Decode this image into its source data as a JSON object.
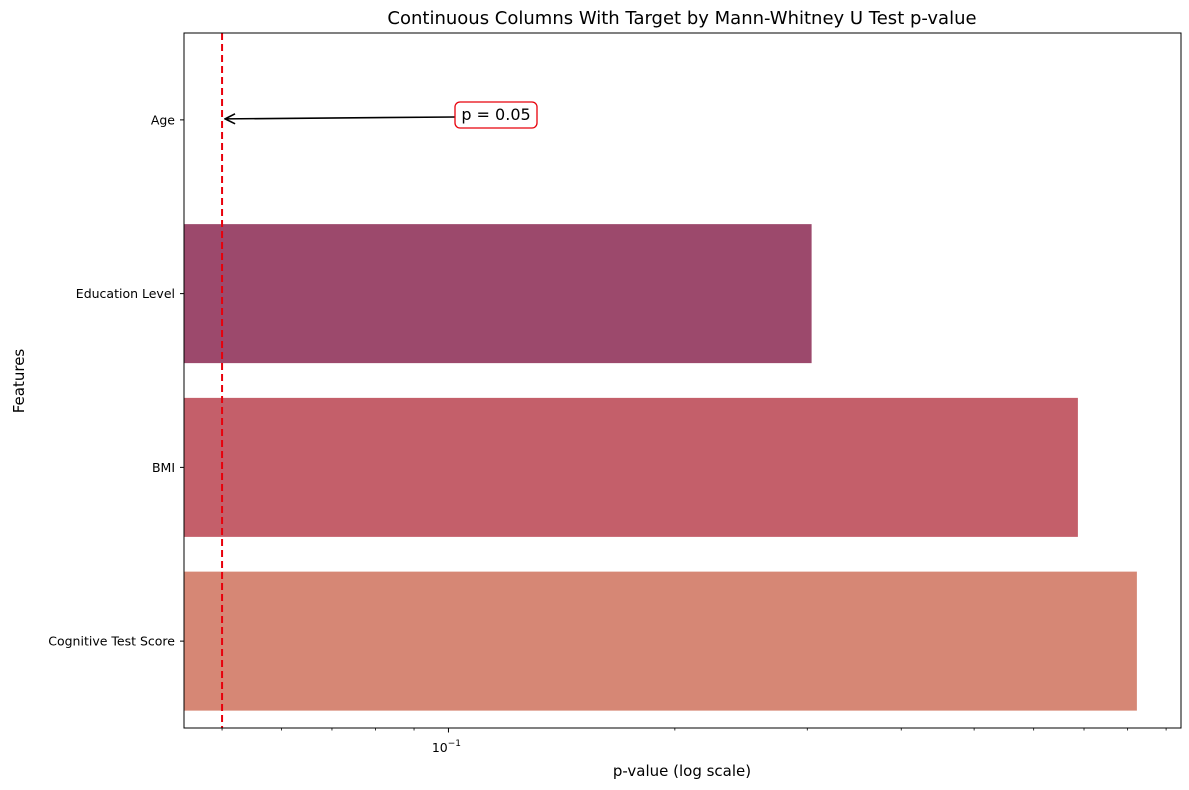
{
  "chart_data": {
    "type": "bar",
    "orientation": "horizontal",
    "title": "Continuous Columns With Target by Mann-Whitney U Test p-value",
    "xlabel": "p-value (log scale)",
    "ylabel": "Features",
    "x_scale": "log",
    "xlim": [
      0.0445,
      0.942
    ],
    "x_major_ticks": [
      {
        "value": 0.1,
        "label": "10",
        "exp": "−1"
      }
    ],
    "x_minor_ticks": [
      0.05,
      0.06,
      0.07,
      0.08,
      0.09,
      0.2,
      0.3,
      0.4,
      0.5,
      0.6,
      0.7,
      0.8,
      0.9
    ],
    "grid": false,
    "legend": "none",
    "categories": [
      "Age",
      "Education Level",
      "BMI",
      "Cognitive Test Score"
    ],
    "values": [
      0.0,
      0.304,
      0.687,
      0.823
    ],
    "colors": [
      "#5a2a5a",
      "#9c496c",
      "#c45f6a",
      "#d68775"
    ],
    "reference_line": {
      "value": 0.05,
      "color": "#e8000b",
      "style": "dashed"
    },
    "annotation": {
      "text": "p = 0.05",
      "target_category": "Age",
      "target_value": 0.05,
      "box_edge_color": "#e8000b"
    }
  }
}
